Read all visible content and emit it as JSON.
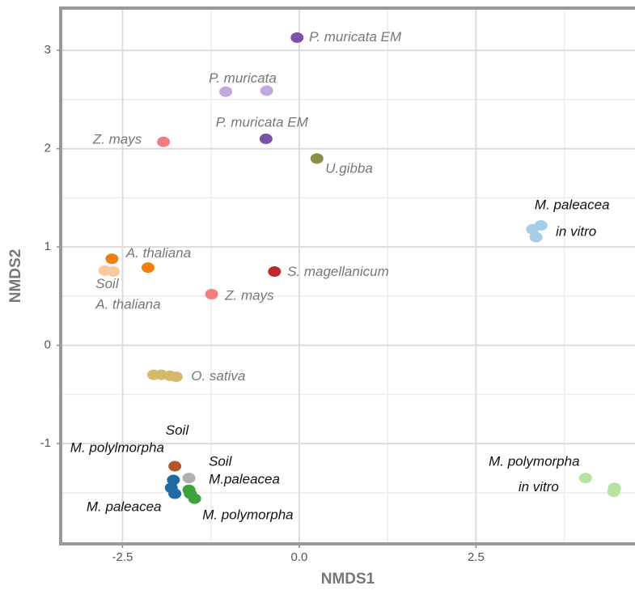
{
  "chart_data": {
    "type": "scatter",
    "x_label": "NMDS1",
    "y_label": "NMDS2",
    "xlim": [
      -3.375,
      4.75
    ],
    "ylim": [
      -2.02,
      3.43
    ],
    "xticks": [
      {
        "value": -2.5,
        "label": "-2.5"
      },
      {
        "value": 0,
        "label": "0.0"
      },
      {
        "value": 2.5,
        "label": "2.5"
      }
    ],
    "yticks": [
      -1,
      0,
      1,
      2,
      3
    ],
    "x_minor_ticks": [
      -1.25,
      1.25,
      3.75
    ],
    "y_minor_ticks": [
      -1.5,
      -0.5,
      0.5,
      1.5,
      2.5
    ],
    "grid": true,
    "series": [
      {
        "color": "#7b52ab",
        "x": [
          -0.03,
          -0.47
        ],
        "y": [
          3.13,
          2.1
        ]
      },
      {
        "color": "#c3a9e0",
        "x": [
          -1.04,
          -0.46
        ],
        "y": [
          2.58,
          2.59
        ]
      },
      {
        "color": "#f47c7c",
        "x": [
          -1.92,
          -1.24
        ],
        "y": [
          2.07,
          0.52
        ]
      },
      {
        "color": "#8a8f4a",
        "x": [
          0.25
        ],
        "y": [
          1.9
        ]
      },
      {
        "color": "#a6cde8",
        "x": [
          3.3,
          3.42,
          3.35
        ],
        "y": [
          1.18,
          1.22,
          1.1
        ]
      },
      {
        "color": "#f07f10",
        "x": [
          -2.65,
          -2.14
        ],
        "y": [
          0.88,
          0.79
        ]
      },
      {
        "color": "#fbc8a0",
        "x": [
          -2.75,
          -2.63
        ],
        "y": [
          0.76,
          0.75
        ]
      },
      {
        "color": "#c0292b",
        "x": [
          -0.35
        ],
        "y": [
          0.75
        ]
      },
      {
        "color": "#d8b86a",
        "x": [
          -2.06,
          -1.95,
          -1.83,
          -1.74
        ],
        "y": [
          -0.3,
          -0.3,
          -0.31,
          -0.32
        ]
      },
      {
        "color": "#b5562a",
        "x": [
          -1.76
        ],
        "y": [
          -1.23
        ]
      },
      {
        "color": "#b0b0b0",
        "x": [
          -1.56
        ],
        "y": [
          -1.35
        ]
      },
      {
        "color": "#1f6aa5",
        "x": [
          -1.78,
          -1.81,
          -1.76
        ],
        "y": [
          -1.37,
          -1.45,
          -1.51
        ]
      },
      {
        "color": "#3aa33a",
        "x": [
          -1.56,
          -1.48,
          -1.54
        ],
        "y": [
          -1.47,
          -1.56,
          -1.51
        ]
      },
      {
        "color": "#b5e3a0",
        "x": [
          4.05,
          4.46,
          4.45
        ],
        "y": [
          -1.35,
          -1.45,
          -1.49
        ]
      }
    ],
    "annotations": [
      {
        "text": "P. muricata EM",
        "x": 0.14,
        "y": 3.13,
        "color": "#777777"
      },
      {
        "text": "P. muricata",
        "x": -1.28,
        "y": 2.71,
        "color": "#777777"
      },
      {
        "text": "P. muricata EM",
        "x": -1.18,
        "y": 2.26,
        "color": "#777777"
      },
      {
        "text": "Z. mays",
        "x": -2.92,
        "y": 2.09,
        "color": "#777777"
      },
      {
        "text": "U.gibba",
        "x": 0.37,
        "y": 1.79,
        "color": "#777777"
      },
      {
        "text": "M. paleacea",
        "x": 3.33,
        "y": 1.42,
        "color": "#111111"
      },
      {
        "text": "in vitro",
        "x": 3.63,
        "y": 1.15,
        "color": "#111111"
      },
      {
        "text": "A. thaliana",
        "x": -2.45,
        "y": 0.93,
        "color": "#777777"
      },
      {
        "text": "Soil",
        "x": -2.88,
        "y": 0.62,
        "color": "#777777"
      },
      {
        "text": "A. thaliana",
        "x": -2.88,
        "y": 0.41,
        "color": "#777777"
      },
      {
        "text": "S. magellanicum",
        "x": -0.17,
        "y": 0.74,
        "color": "#777777"
      },
      {
        "text": "Z. mays",
        "x": -1.05,
        "y": 0.5,
        "color": "#777777"
      },
      {
        "text": "O. sativa",
        "x": -1.53,
        "y": -0.32,
        "color": "#777777"
      },
      {
        "text": "Soil",
        "x": -1.89,
        "y": -0.87,
        "color": "#111111"
      },
      {
        "text": "M. polylmorpha",
        "x": -3.24,
        "y": -1.05,
        "color": "#111111"
      },
      {
        "text": "Soil",
        "x": -1.28,
        "y": -1.19,
        "color": "#111111"
      },
      {
        "text": "M.paleacea",
        "x": -1.28,
        "y": -1.37,
        "color": "#111111"
      },
      {
        "text": "M. paleacea",
        "x": -3.01,
        "y": -1.65,
        "color": "#111111"
      },
      {
        "text": "M. polymorpha",
        "x": -1.37,
        "y": -1.73,
        "color": "#111111"
      },
      {
        "text": "M. polymorpha",
        "x": 2.68,
        "y": -1.19,
        "color": "#111111"
      },
      {
        "text": "in vitro",
        "x": 3.1,
        "y": -1.45,
        "color": "#111111"
      }
    ]
  }
}
